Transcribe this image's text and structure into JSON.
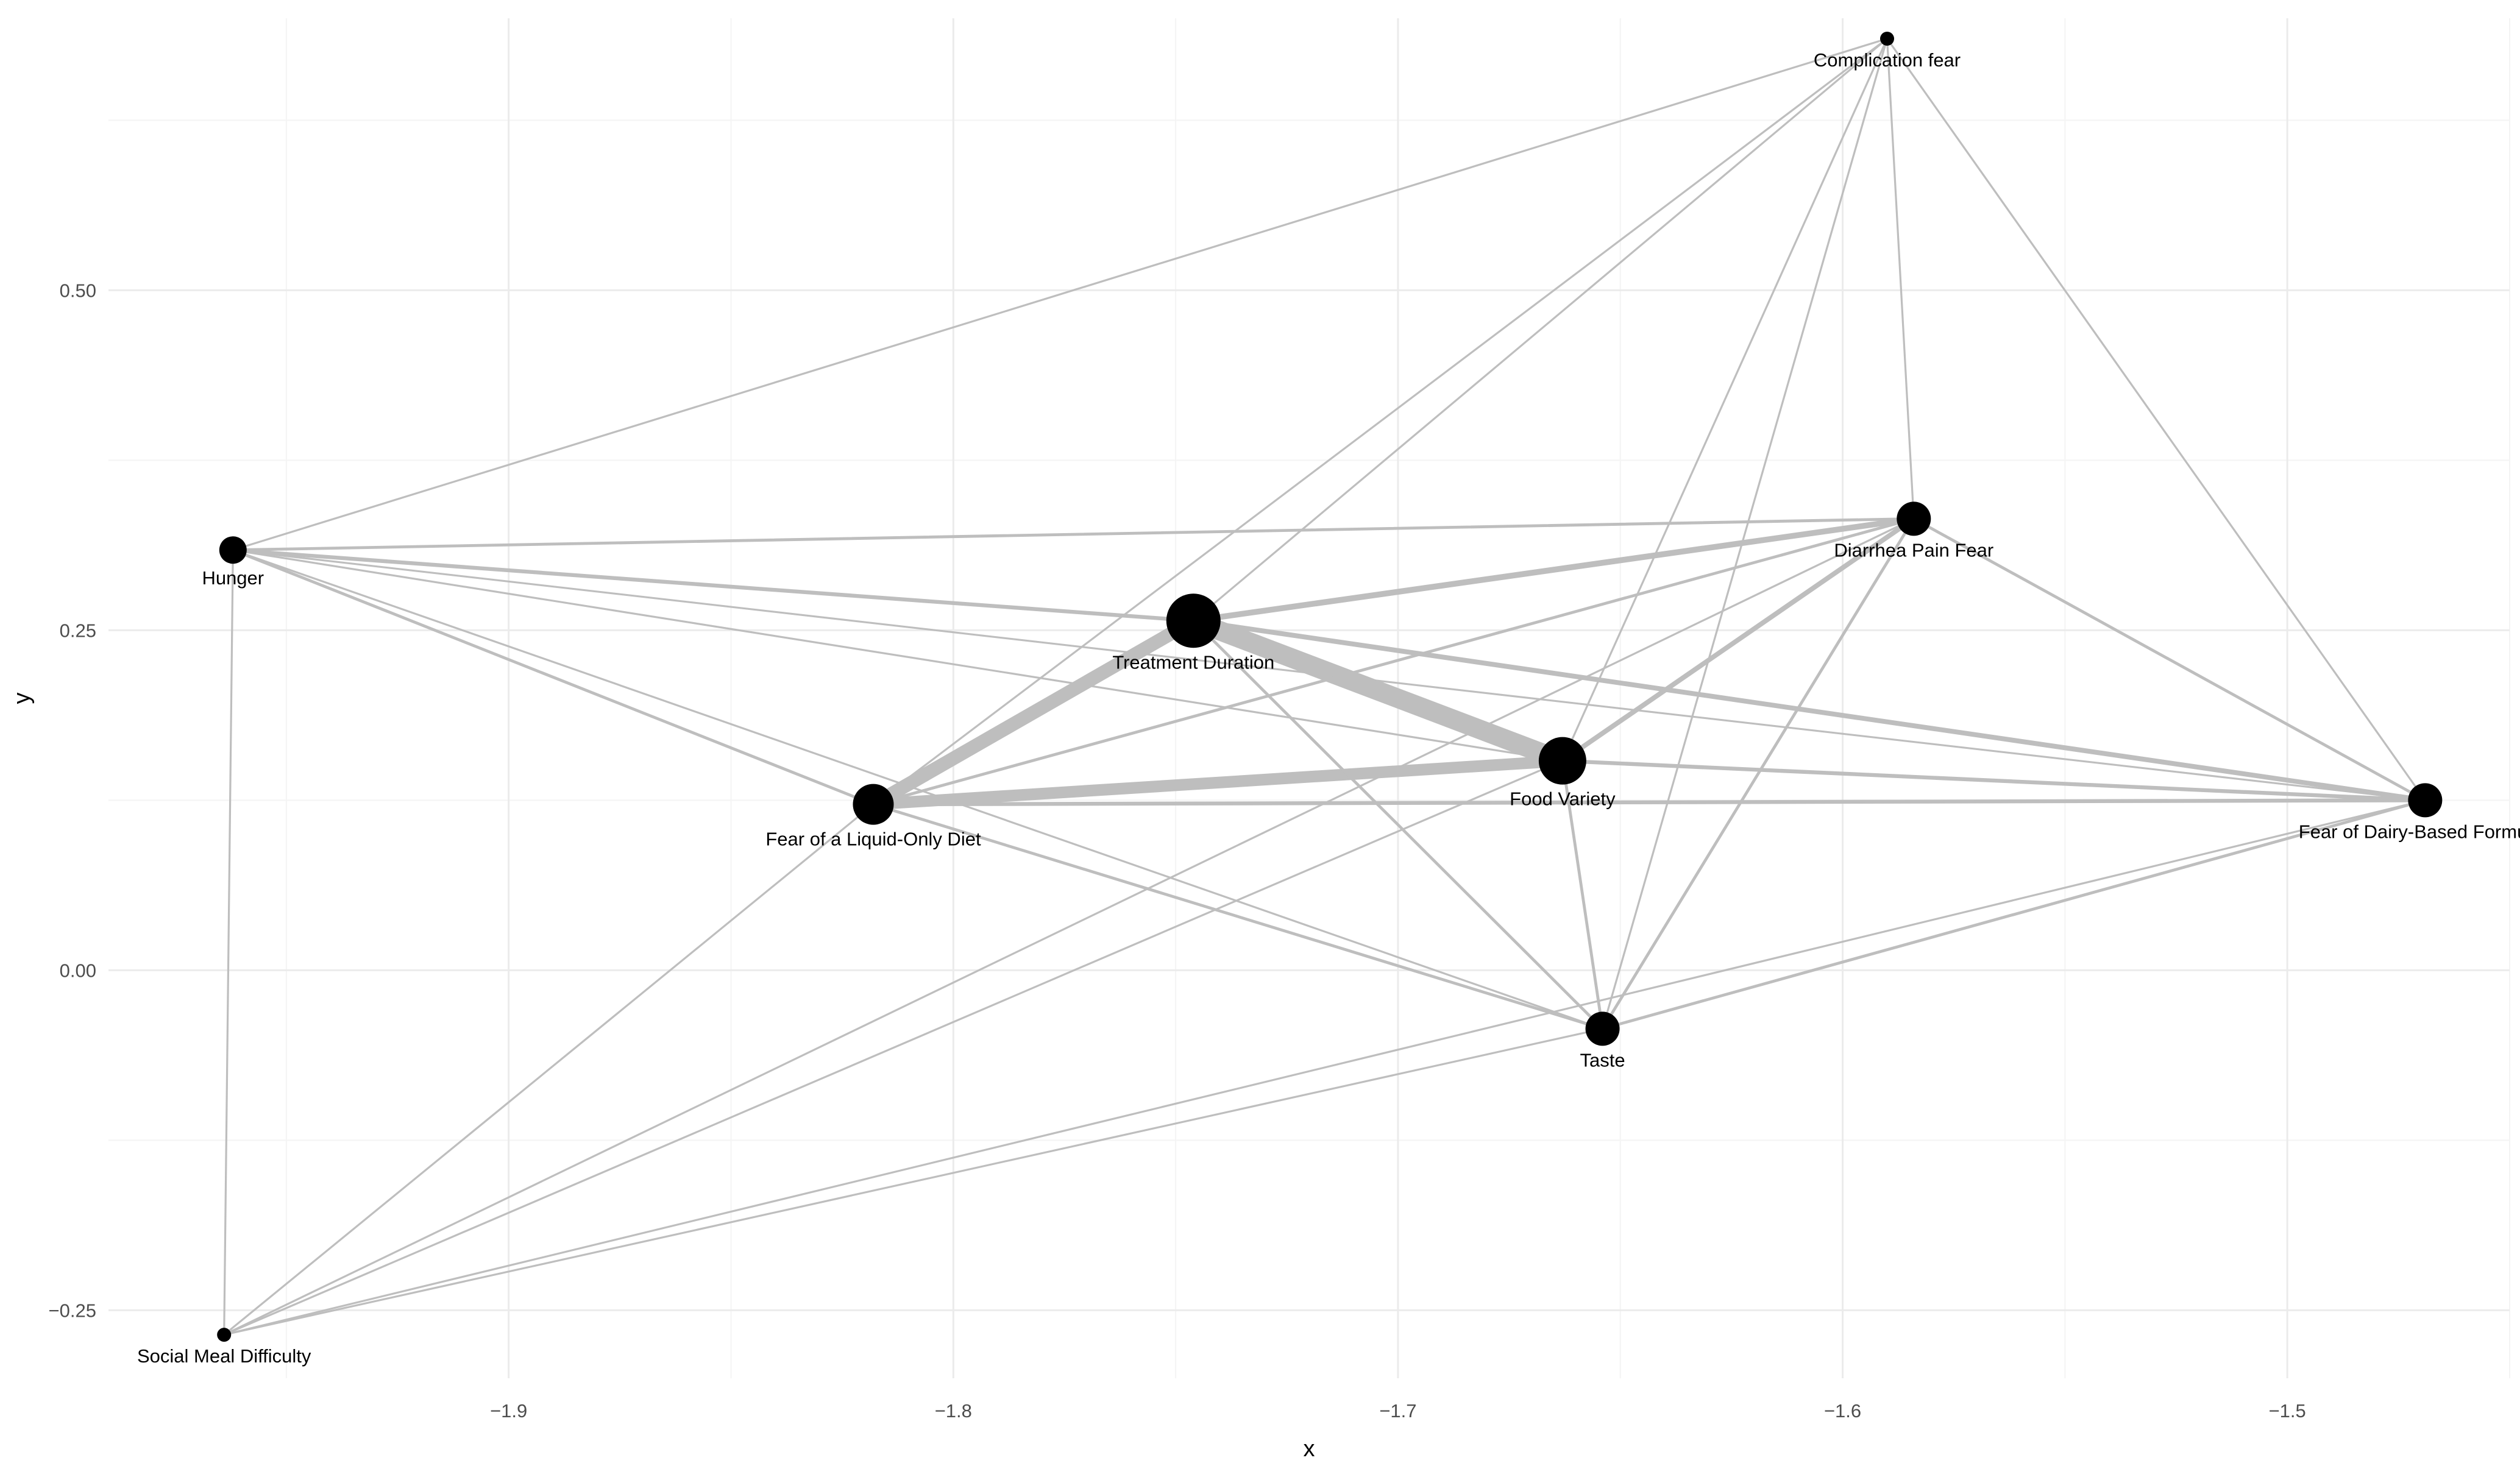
{
  "chart_data": {
    "type": "scatter",
    "title": "",
    "xlabel": "x",
    "ylabel": "y",
    "xlim": [
      -1.99,
      -1.45
    ],
    "ylim": [
      -0.3,
      0.7
    ],
    "x_ticks": [
      -1.9,
      -1.8,
      -1.7,
      -1.6,
      -1.5
    ],
    "x_tick_labels": [
      "−1.9",
      "−1.8",
      "−1.7",
      "−1.6",
      "−1.5"
    ],
    "y_ticks": [
      -0.25,
      0.0,
      0.25,
      0.5
    ],
    "y_tick_labels": [
      "−0.25",
      "0.00",
      "0.25",
      "0.50"
    ],
    "grid": true,
    "legend": "none",
    "edge_color": "#bebebe",
    "node_color": "#000000",
    "nodes": [
      {
        "id": "complication",
        "label": "Complication fear",
        "x": -1.59,
        "y": 0.685,
        "size": 1,
        "label_pos": "below"
      },
      {
        "id": "diarrhea",
        "label": "Diarrhea Pain Fear",
        "x": -1.584,
        "y": 0.332,
        "size": 4,
        "label_pos": "below"
      },
      {
        "id": "hunger",
        "label": "Hunger",
        "x": -1.962,
        "y": 0.309,
        "size": 3,
        "label_pos": "below"
      },
      {
        "id": "treatment",
        "label": "Treatment Duration",
        "x": -1.746,
        "y": 0.257,
        "size": 7,
        "label_pos": "below"
      },
      {
        "id": "food",
        "label": "Food Variety",
        "x": -1.663,
        "y": 0.154,
        "size": 6,
        "label_pos": "below"
      },
      {
        "id": "liquid",
        "label": "Fear of a Liquid-Only Diet",
        "x": -1.818,
        "y": 0.122,
        "size": 5,
        "label_pos": "below"
      },
      {
        "id": "dairy",
        "label": "Fear of Dairy-Based Formulas",
        "x": -1.469,
        "y": 0.125,
        "size": 4,
        "label_pos": "below"
      },
      {
        "id": "taste",
        "label": "Taste",
        "x": -1.654,
        "y": -0.043,
        "size": 4,
        "label_pos": "below"
      },
      {
        "id": "social",
        "label": "Social Meal Difficulty",
        "x": -1.964,
        "y": -0.268,
        "size": 1,
        "label_pos": "below"
      }
    ],
    "edges": [
      {
        "source": "treatment",
        "target": "food",
        "weight": 10
      },
      {
        "source": "treatment",
        "target": "liquid",
        "weight": 7
      },
      {
        "source": "liquid",
        "target": "food",
        "weight": 6
      },
      {
        "source": "treatment",
        "target": "diarrhea",
        "weight": 3
      },
      {
        "source": "treatment",
        "target": "dairy",
        "weight": 2.5
      },
      {
        "source": "food",
        "target": "diarrhea",
        "weight": 2.5
      },
      {
        "source": "liquid",
        "target": "dairy",
        "weight": 2
      },
      {
        "source": "food",
        "target": "dairy",
        "weight": 2
      },
      {
        "source": "hunger",
        "target": "treatment",
        "weight": 2
      },
      {
        "source": "hunger",
        "target": "diarrhea",
        "weight": 1.5
      },
      {
        "source": "diarrhea",
        "target": "dairy",
        "weight": 1.5
      },
      {
        "source": "hunger",
        "target": "dairy",
        "weight": 1
      },
      {
        "source": "hunger",
        "target": "food",
        "weight": 1
      },
      {
        "source": "hunger",
        "target": "liquid",
        "weight": 1.5
      },
      {
        "source": "hunger",
        "target": "taste",
        "weight": 1
      },
      {
        "source": "hunger",
        "target": "complication",
        "weight": 1
      },
      {
        "source": "hunger",
        "target": "social",
        "weight": 1
      },
      {
        "source": "liquid",
        "target": "diarrhea",
        "weight": 1.5
      },
      {
        "source": "liquid",
        "target": "taste",
        "weight": 1.5
      },
      {
        "source": "liquid",
        "target": "complication",
        "weight": 1
      },
      {
        "source": "liquid",
        "target": "social",
        "weight": 1
      },
      {
        "source": "treatment",
        "target": "taste",
        "weight": 1.5
      },
      {
        "source": "treatment",
        "target": "complication",
        "weight": 1
      },
      {
        "source": "food",
        "target": "taste",
        "weight": 1.5
      },
      {
        "source": "food",
        "target": "complication",
        "weight": 1
      },
      {
        "source": "food",
        "target": "social",
        "weight": 1
      },
      {
        "source": "taste",
        "target": "diarrhea",
        "weight": 1.5
      },
      {
        "source": "taste",
        "target": "dairy",
        "weight": 1.5
      },
      {
        "source": "taste",
        "target": "complication",
        "weight": 1
      },
      {
        "source": "taste",
        "target": "social",
        "weight": 1
      },
      {
        "source": "diarrhea",
        "target": "complication",
        "weight": 1
      },
      {
        "source": "diarrhea",
        "target": "social",
        "weight": 1
      },
      {
        "source": "dairy",
        "target": "complication",
        "weight": 1
      },
      {
        "source": "dairy",
        "target": "social",
        "weight": 1
      }
    ]
  }
}
